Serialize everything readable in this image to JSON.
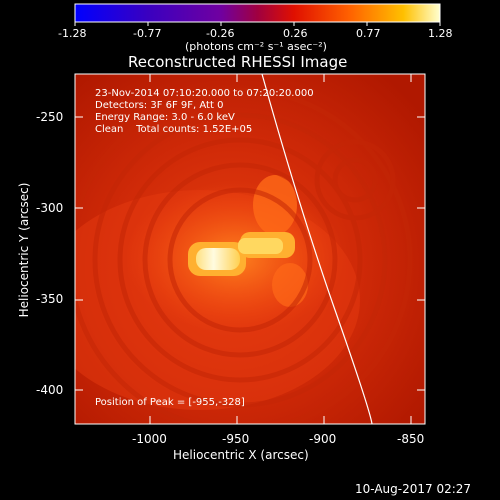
{
  "colorbar": {
    "ticks": [
      "-1.28",
      "-0.77",
      "-0.26",
      "0.26",
      "0.77",
      "1.28"
    ],
    "units": "(photons cm⁻² s⁻¹ asec⁻²)"
  },
  "title": "Reconstructed RHESSI Image",
  "info": {
    "line1": "23-Nov-2014 07:10:20.000 to 07:20:20.000",
    "line2": "Detectors: 3F 6F 9F, Att 0",
    "line3": "Energy Range: 3.0 - 6.0 keV",
    "line4": "Clean    Total counts: 1.52E+05"
  },
  "peak_label": "Position of Peak = [-955,-328]",
  "axes": {
    "xlabel": "Heliocentric X (arcsec)",
    "ylabel": "Heliocentric Y (arcsec)",
    "x_ticks": [
      "-1000",
      "-950",
      "-900",
      "-850"
    ],
    "y_ticks": [
      "-250",
      "-300",
      "-350",
      "-400"
    ]
  },
  "footer_date": "10-Aug-2017 02:27"
}
